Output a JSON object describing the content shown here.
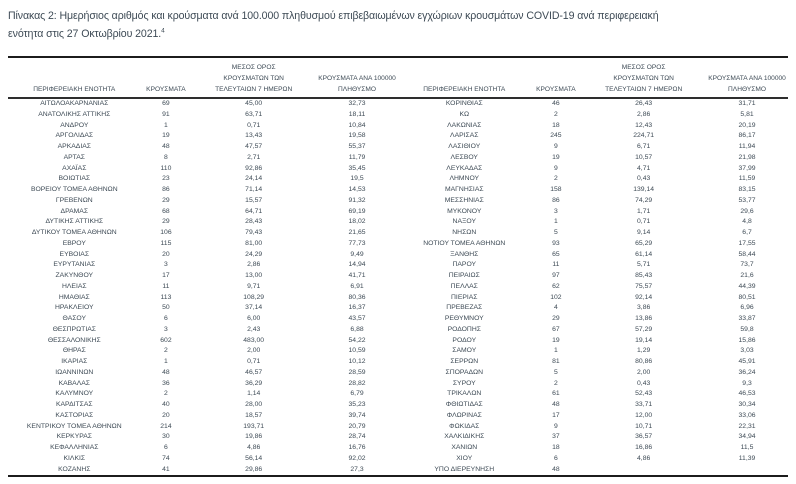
{
  "title": {
    "line1": "Πίνακας 2:  Ημερήσιος αριθμός και κρούσματα ανά 100.000 πληθυσμού επιβεβαιωμένων εγχώριων κρουσμάτων COVID-19 ανά περιφερειακή",
    "line2": "ενότητα στις 27 Οκτωβρίου 2021.",
    "footnote_ref": "4"
  },
  "colors": {
    "text_ink": "#3d4a55",
    "rule_heavy": "#1c1c1c",
    "rule_header": "#2e2e2e",
    "background": "#ffffff"
  },
  "table": {
    "columns": [
      {
        "lines": [
          "ΠΕΡΙΦΕΡΕΙΑΚΗ ΕΝΟΤΗΤΑ"
        ]
      },
      {
        "lines": [
          "ΚΡΟΥΣΜΑΤΑ"
        ]
      },
      {
        "lines": [
          "ΜΕΣΟΣ ΟΡΟΣ",
          "ΚΡΟΥΣΜΑΤΩΝ ΤΩΝ",
          "ΤΕΛΕΥΤΑΙΩΝ 7 ΗΜΕΡΩΝ"
        ]
      },
      {
        "lines": [
          "ΚΡΟΥΣΜΑΤΑ ΑΝΑ 100000",
          "ΠΛΗΘΥΣΜΟ"
        ]
      }
    ],
    "left_rows": [
      [
        "ΑΙΤΩΛΟΑΚΑΡΝΑΝΙΑΣ",
        "69",
        "45,00",
        "32,73"
      ],
      [
        "ΑΝΑΤΟΛΙΚΗΣ ΑΤΤΙΚΗΣ",
        "91",
        "63,71",
        "18,11"
      ],
      [
        "ΑΝΔΡΟΥ",
        "1",
        "0,71",
        "10,84"
      ],
      [
        "ΑΡΓΟΛΙΔΑΣ",
        "19",
        "13,43",
        "19,58"
      ],
      [
        "ΑΡΚΑΔΙΑΣ",
        "48",
        "47,57",
        "55,37"
      ],
      [
        "ΑΡΤΑΣ",
        "8",
        "2,71",
        "11,79"
      ],
      [
        "ΑΧΑΪΑΣ",
        "110",
        "92,86",
        "35,45"
      ],
      [
        "ΒΟΙΩΤΙΑΣ",
        "23",
        "24,14",
        "19,5"
      ],
      [
        "ΒΟΡΕΙΟΥ ΤΟΜΕΑ ΑΘΗΝΩΝ",
        "86",
        "71,14",
        "14,53"
      ],
      [
        "ΓΡΕΒΕΝΩΝ",
        "29",
        "15,57",
        "91,32"
      ],
      [
        "ΔΡΑΜΑΣ",
        "68",
        "64,71",
        "69,19"
      ],
      [
        "ΔΥΤΙΚΗΣ ΑΤΤΙΚΗΣ",
        "29",
        "28,43",
        "18,02"
      ],
      [
        "ΔΥΤΙΚΟΥ ΤΟΜΕΑ ΑΘΗΝΩΝ",
        "106",
        "79,43",
        "21,65"
      ],
      [
        "ΕΒΡΟΥ",
        "115",
        "81,00",
        "77,73"
      ],
      [
        "ΕΥΒΟΙΑΣ",
        "20",
        "24,29",
        "9,49"
      ],
      [
        "ΕΥΡΥΤΑΝΙΑΣ",
        "3",
        "2,86",
        "14,94"
      ],
      [
        "ΖΑΚΥΝΘΟΥ",
        "17",
        "13,00",
        "41,71"
      ],
      [
        "ΗΛΕΙΑΣ",
        "11",
        "9,71",
        "6,91"
      ],
      [
        "ΗΜΑΘΙΑΣ",
        "113",
        "108,29",
        "80,36"
      ],
      [
        "ΗΡΑΚΛΕΙΟΥ",
        "50",
        "37,14",
        "16,37"
      ],
      [
        "ΘΑΣΟΥ",
        "6",
        "6,00",
        "43,57"
      ],
      [
        "ΘΕΣΠΡΩΤΙΑΣ",
        "3",
        "2,43",
        "6,88"
      ],
      [
        "ΘΕΣΣΑΛΟΝΙΚΗΣ",
        "602",
        "483,00",
        "54,22"
      ],
      [
        "ΘΗΡΑΣ",
        "2",
        "2,00",
        "10,59"
      ],
      [
        "ΙΚΑΡΙΑΣ",
        "1",
        "0,71",
        "10,12"
      ],
      [
        "ΙΩΑΝΝΙΝΩΝ",
        "48",
        "46,57",
        "28,59"
      ],
      [
        "ΚΑΒΑΛΑΣ",
        "36",
        "36,29",
        "28,82"
      ],
      [
        "ΚΑΛΥΜΝΟΥ",
        "2",
        "1,14",
        "6,79"
      ],
      [
        "ΚΑΡΔΙΤΣΑΣ",
        "40",
        "28,00",
        "35,23"
      ],
      [
        "ΚΑΣΤΟΡΙΑΣ",
        "20",
        "18,57",
        "39,74"
      ],
      [
        "ΚΕΝΤΡΙΚΟΥ ΤΟΜΕΑ ΑΘΗΝΩΝ",
        "214",
        "193,71",
        "20,79"
      ],
      [
        "ΚΕΡΚΥΡΑΣ",
        "30",
        "19,86",
        "28,74"
      ],
      [
        "ΚΕΦΑΛΛΗΝΙΑΣ",
        "6",
        "4,86",
        "16,76"
      ],
      [
        "ΚΙΛΚΙΣ",
        "74",
        "56,14",
        "92,02"
      ],
      [
        "ΚΟΖΑΝΗΣ",
        "41",
        "29,86",
        "27,3"
      ]
    ],
    "right_rows": [
      [
        "ΚΟΡΙΝΘΙΑΣ",
        "46",
        "26,43",
        "31,71"
      ],
      [
        "ΚΩ",
        "2",
        "2,86",
        "5,81"
      ],
      [
        "ΛΑΚΩΝΙΑΣ",
        "18",
        "12,43",
        "20,19"
      ],
      [
        "ΛΑΡΙΣΑΣ",
        "245",
        "224,71",
        "86,17"
      ],
      [
        "ΛΑΣΙΘΙΟΥ",
        "9",
        "6,71",
        "11,94"
      ],
      [
        "ΛΕΣΒΟΥ",
        "19",
        "10,57",
        "21,98"
      ],
      [
        "ΛΕΥΚΑΔΑΣ",
        "9",
        "4,71",
        "37,99"
      ],
      [
        "ΛΗΜΝΟΥ",
        "2",
        "0,43",
        "11,59"
      ],
      [
        "ΜΑΓΝΗΣΙΑΣ",
        "158",
        "139,14",
        "83,15"
      ],
      [
        "ΜΕΣΣΗΝΙΑΣ",
        "86",
        "74,29",
        "53,77"
      ],
      [
        "ΜΥΚΟΝΟΥ",
        "3",
        "1,71",
        "29,6"
      ],
      [
        "ΝΑΞΟΥ",
        "1",
        "0,71",
        "4,8"
      ],
      [
        "ΝΗΣΩΝ",
        "5",
        "9,14",
        "6,7"
      ],
      [
        "ΝΟΤΙΟΥ ΤΟΜΕΑ ΑΘΗΝΩΝ",
        "93",
        "65,29",
        "17,55"
      ],
      [
        "ΞΑΝΘΗΣ",
        "65",
        "61,14",
        "58,44"
      ],
      [
        "ΠΑΡΟΥ",
        "11",
        "5,71",
        "73,7"
      ],
      [
        "ΠΕΙΡΑΙΩΣ",
        "97",
        "85,43",
        "21,6"
      ],
      [
        "ΠΕΛΛΑΣ",
        "62",
        "75,57",
        "44,39"
      ],
      [
        "ΠΙΕΡΙΑΣ",
        "102",
        "92,14",
        "80,51"
      ],
      [
        "ΠΡΕΒΕΖΑΣ",
        "4",
        "3,86",
        "6,96"
      ],
      [
        "ΡΕΘΥΜΝΟΥ",
        "29",
        "13,86",
        "33,87"
      ],
      [
        "ΡΟΔΟΠΗΣ",
        "67",
        "57,29",
        "59,8"
      ],
      [
        "ΡΟΔΟΥ",
        "19",
        "19,14",
        "15,86"
      ],
      [
        "ΣΑΜΟΥ",
        "1",
        "1,29",
        "3,03"
      ],
      [
        "ΣΕΡΡΩΝ",
        "81",
        "80,86",
        "45,91"
      ],
      [
        "ΣΠΟΡΑΔΩΝ",
        "5",
        "2,00",
        "36,24"
      ],
      [
        "ΣΥΡΟΥ",
        "2",
        "0,43",
        "9,3"
      ],
      [
        "ΤΡΙΚΑΛΩΝ",
        "61",
        "52,43",
        "46,53"
      ],
      [
        "ΦΘΙΩΤΙΔΑΣ",
        "48",
        "33,71",
        "30,34"
      ],
      [
        "ΦΛΩΡΙΝΑΣ",
        "17",
        "12,00",
        "33,06"
      ],
      [
        "ΦΩΚΙΔΑΣ",
        "9",
        "10,71",
        "22,31"
      ],
      [
        "ΧΑΛΚΙΔΙΚΗΣ",
        "37",
        "36,57",
        "34,94"
      ],
      [
        "ΧΑΝΙΩΝ",
        "18",
        "16,86",
        "11,5"
      ],
      [
        "ΧΙΟΥ",
        "6",
        "4,86",
        "11,39"
      ],
      [
        "ΥΠΟ ΔΙΕΡΕΥΝΗΣΗ",
        "48",
        "",
        ""
      ]
    ]
  }
}
